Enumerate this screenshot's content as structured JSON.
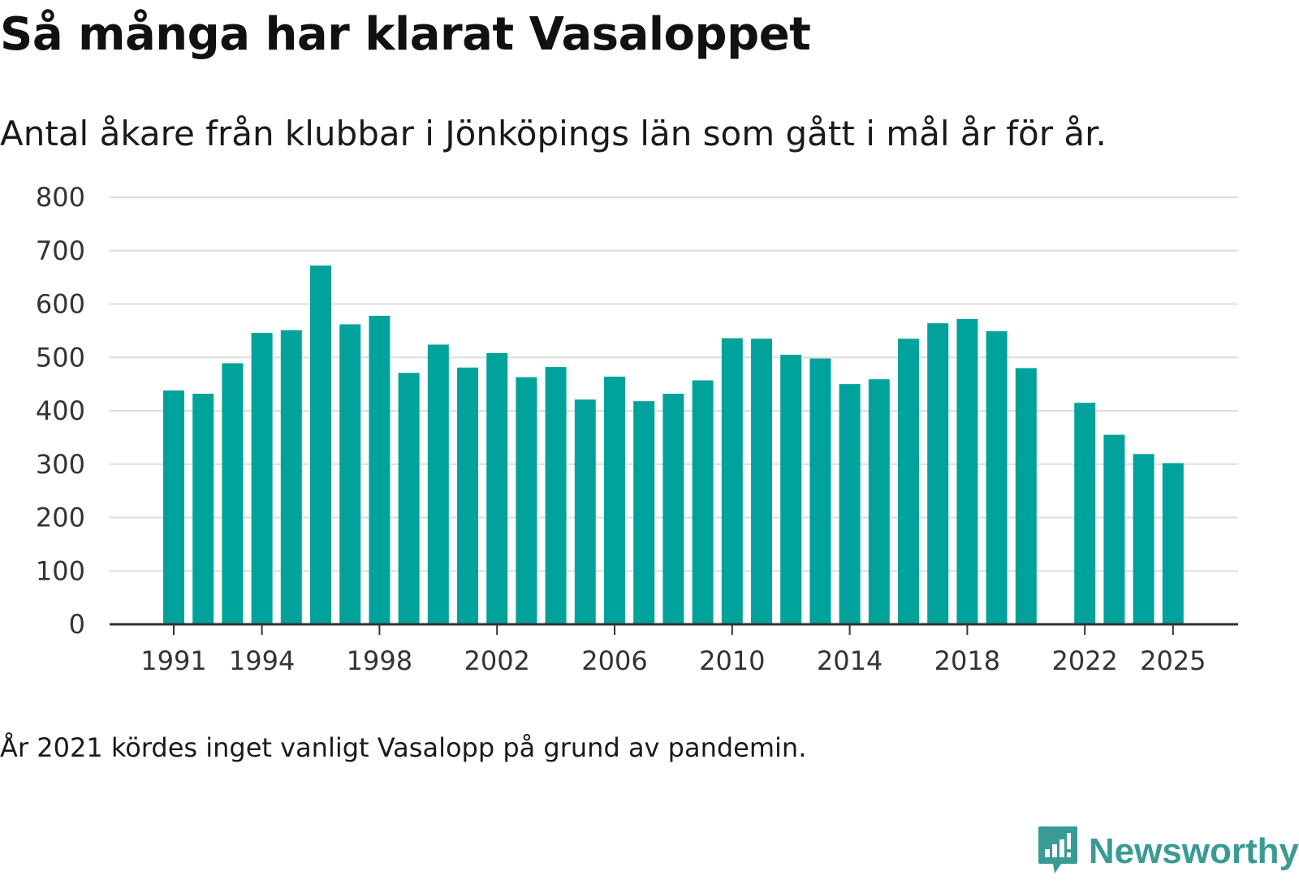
{
  "title": "Så många har klarat Vasaloppet",
  "subtitle": "Antal åkare från klubbar i Jönköpings län som gått i mål år för år.",
  "footnote": "År 2021 kördes inget vanligt Vasalopp på grund av pandemin.",
  "brand": {
    "name": "Newsworthy",
    "icon": "newsworthy-logo-icon"
  },
  "colors": {
    "bar": "#00a39b",
    "grid": "#dddddd",
    "axis": "#333333",
    "brand": "#3a9a94"
  },
  "chart_data": {
    "type": "bar",
    "title": "Så många har klarat Vasaloppet",
    "xlabel": "",
    "ylabel": "",
    "ylim": [
      0,
      800
    ],
    "yticks": [
      0,
      100,
      200,
      300,
      400,
      500,
      600,
      700,
      800
    ],
    "xtick_labels": [
      "1991",
      "1994",
      "1998",
      "2002",
      "2006",
      "2010",
      "2014",
      "2018",
      "2022",
      "2025"
    ],
    "grid": true,
    "categories": [
      1991,
      1992,
      1993,
      1994,
      1995,
      1996,
      1997,
      1998,
      1999,
      2000,
      2001,
      2002,
      2003,
      2004,
      2005,
      2006,
      2007,
      2008,
      2009,
      2010,
      2011,
      2012,
      2013,
      2014,
      2015,
      2016,
      2017,
      2018,
      2019,
      2020,
      2021,
      2022,
      2023,
      2024,
      2025
    ],
    "values": [
      438,
      432,
      489,
      546,
      551,
      672,
      562,
      578,
      471,
      524,
      481,
      508,
      463,
      482,
      421,
      464,
      418,
      432,
      457,
      536,
      535,
      505,
      498,
      450,
      459,
      535,
      564,
      572,
      549,
      480,
      null,
      415,
      355,
      319,
      302
    ]
  }
}
